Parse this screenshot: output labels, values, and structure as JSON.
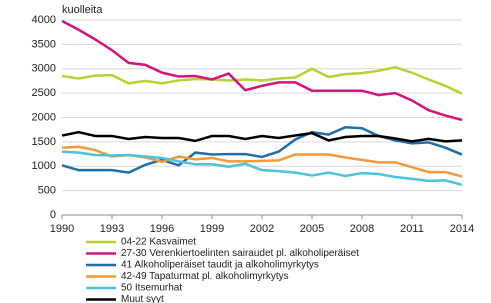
{
  "chart_data": {
    "type": "line",
    "y_label": "kuolleita",
    "x": [
      1990,
      1991,
      1992,
      1993,
      1994,
      1995,
      1996,
      1997,
      1998,
      1999,
      2000,
      2001,
      2002,
      2003,
      2004,
      2005,
      2006,
      2007,
      2008,
      2009,
      2010,
      2011,
      2012,
      2013,
      2014
    ],
    "xlim": [
      1990,
      2014
    ],
    "xticks": [
      1990,
      1993,
      1996,
      1999,
      2002,
      2005,
      2008,
      2011,
      2014
    ],
    "ylim": [
      0,
      4000
    ],
    "yticks": [
      0,
      500,
      1000,
      1500,
      2000,
      2500,
      3000,
      3500,
      4000
    ],
    "grid": true,
    "series": [
      {
        "name": "04-22 Kasvaimet",
        "color": "#b5d334",
        "values": [
          2850,
          2800,
          2860,
          2870,
          2700,
          2750,
          2700,
          2760,
          2790,
          2780,
          2760,
          2780,
          2760,
          2800,
          2820,
          3000,
          2830,
          2890,
          2910,
          2960,
          3030,
          2920,
          2780,
          2650,
          2490
        ]
      },
      {
        "name": "27-30 Verenkiertoelinten sairaudet pl. alkoholiperäiset",
        "color": "#d4147a",
        "values": [
          3980,
          3800,
          3600,
          3380,
          3120,
          3080,
          2920,
          2840,
          2850,
          2780,
          2900,
          2560,
          2650,
          2720,
          2720,
          2550,
          2550,
          2550,
          2550,
          2460,
          2500,
          2350,
          2150,
          2040,
          1950
        ]
      },
      {
        "name": "41 Alkoholiperäiset taudit ja alkoholimyrkytys",
        "color": "#1f6fa8",
        "values": [
          1020,
          920,
          920,
          920,
          870,
          1030,
          1130,
          1020,
          1280,
          1240,
          1250,
          1250,
          1190,
          1300,
          1550,
          1700,
          1650,
          1800,
          1780,
          1620,
          1530,
          1470,
          1490,
          1380,
          1240
        ]
      },
      {
        "name": "42-49 Tapaturmat pl. alkoholimyrkytys",
        "color": "#f29a38",
        "values": [
          1380,
          1400,
          1330,
          1200,
          1230,
          1180,
          1090,
          1200,
          1140,
          1170,
          1100,
          1100,
          1110,
          1120,
          1240,
          1240,
          1240,
          1180,
          1130,
          1080,
          1080,
          980,
          880,
          880,
          790
        ]
      },
      {
        "name": "50 Itsemurhat",
        "color": "#4dc3d9",
        "values": [
          1300,
          1280,
          1230,
          1220,
          1230,
          1200,
          1170,
          1100,
          1040,
          1040,
          990,
          1050,
          920,
          900,
          870,
          810,
          870,
          800,
          860,
          840,
          780,
          740,
          700,
          710,
          620
        ]
      },
      {
        "name": "Muut syyt",
        "color": "#000000",
        "values": [
          1630,
          1700,
          1620,
          1620,
          1560,
          1600,
          1580,
          1580,
          1520,
          1620,
          1620,
          1560,
          1620,
          1580,
          1630,
          1680,
          1530,
          1600,
          1620,
          1620,
          1570,
          1510,
          1560,
          1510,
          1530
        ]
      }
    ]
  }
}
